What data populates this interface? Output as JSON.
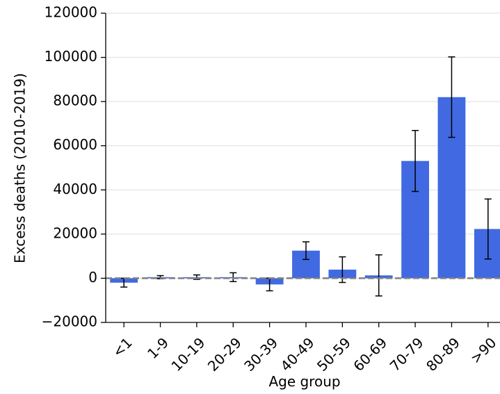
{
  "chart_data": {
    "type": "bar",
    "x_label": "Age group",
    "y_label": "Excess deaths (2010-2019)",
    "categories": [
      "<1",
      "1-9",
      "10-19",
      "20-29",
      "30-39",
      "40-49",
      "50-59",
      "60-69",
      "70-79",
      "80-89",
      ">90"
    ],
    "values": [
      -2000,
      500,
      500,
      500,
      -2800,
      12500,
      3900,
      1300,
      53100,
      82000,
      22300
    ],
    "errors": [
      2000,
      700,
      1000,
      2000,
      2900,
      4000,
      5800,
      9300,
      13800,
      18200,
      13600
    ],
    "color": "#4169e1",
    "ylim": [
      -20000,
      120000
    ],
    "yticks": [
      {
        "value": -20000,
        "label": "−20000"
      },
      0,
      20000,
      40000,
      60000,
      80000,
      100000,
      120000
    ],
    "grid": true,
    "hline": 0
  }
}
